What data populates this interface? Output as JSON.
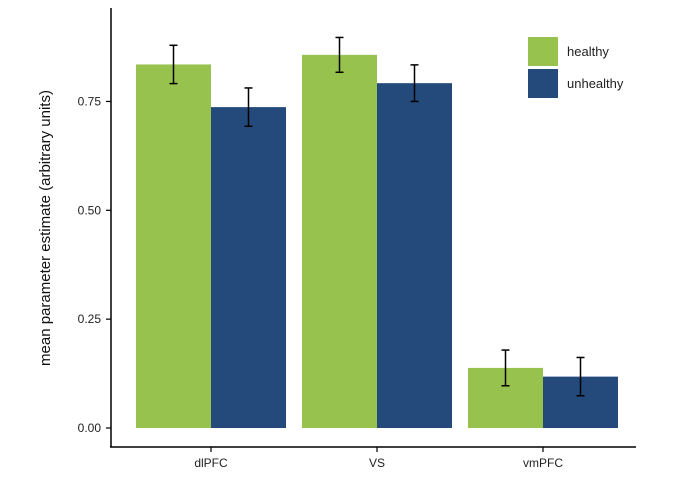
{
  "chart_data": {
    "type": "bar",
    "title": "",
    "xlabel": "",
    "ylabel": "mean parameter estimate (arbitrary units)",
    "categories": [
      "dlPFC",
      "VS",
      "vmPFC"
    ],
    "series": [
      {
        "name": "healthy",
        "color": "#97c24d",
        "values": [
          0.835,
          0.857,
          0.138
        ],
        "error": [
          0.044,
          0.04,
          0.041
        ]
      },
      {
        "name": "unhealthy",
        "color": "#234a7b",
        "values": [
          0.737,
          0.792,
          0.118
        ],
        "error": [
          0.044,
          0.042,
          0.044
        ]
      }
    ],
    "ylim": [
      0,
      0.96
    ],
    "yticks": [
      0,
      0.25,
      0.5,
      0.75
    ],
    "ytick_labels": [
      "0.00",
      "0.25",
      "0.50",
      "0.75"
    ],
    "grid": false,
    "legend_position": "top-right"
  }
}
